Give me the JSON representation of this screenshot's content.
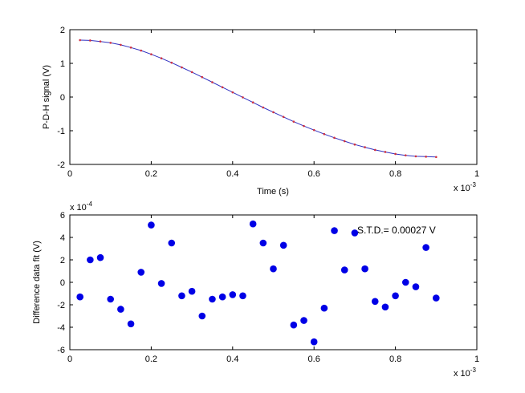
{
  "chart_data": [
    {
      "type": "line",
      "title": "",
      "xlabel": "Time (s)",
      "ylabel": "P-D-H signal (V)",
      "xlim": [
        0,
        1
      ],
      "ylim": [
        -2,
        2
      ],
      "x_multiplier": "x 10",
      "x_multiplier_exp": "-3",
      "xticks": [
        "0",
        "0.2",
        "0.4",
        "0.6",
        "0.8",
        "1"
      ],
      "yticks": [
        "-2",
        "-1",
        "0",
        "1",
        "2"
      ],
      "grid": false,
      "series": [
        {
          "color": "#3030c0",
          "marker_color": "#d03040",
          "x": [
            0.025,
            0.05,
            0.075,
            0.1,
            0.125,
            0.15,
            0.175,
            0.2,
            0.225,
            0.25,
            0.275,
            0.3,
            0.325,
            0.35,
            0.375,
            0.4,
            0.425,
            0.45,
            0.475,
            0.5,
            0.525,
            0.55,
            0.575,
            0.6,
            0.625,
            0.65,
            0.675,
            0.7,
            0.725,
            0.75,
            0.775,
            0.8,
            0.825,
            0.85,
            0.875,
            0.9
          ],
          "y": [
            1.69,
            1.68,
            1.65,
            1.61,
            1.55,
            1.47,
            1.38,
            1.27,
            1.15,
            1.02,
            0.88,
            0.74,
            0.59,
            0.44,
            0.29,
            0.14,
            -0.01,
            -0.16,
            -0.31,
            -0.45,
            -0.59,
            -0.73,
            -0.86,
            -0.98,
            -1.1,
            -1.21,
            -1.31,
            -1.41,
            -1.49,
            -1.57,
            -1.63,
            -1.69,
            -1.73,
            -1.76,
            -1.77,
            -1.78
          ]
        }
      ]
    },
    {
      "type": "scatter",
      "title": "",
      "xlabel": "",
      "ylabel": "Difference data fit (V)",
      "xlim": [
        0,
        1
      ],
      "ylim": [
        -6,
        6
      ],
      "x_multiplier": "x 10",
      "x_multiplier_exp": "-3",
      "y_multiplier": "x 10",
      "y_multiplier_exp": "-4",
      "xticks": [
        "0",
        "0.2",
        "0.4",
        "0.6",
        "0.8",
        "1"
      ],
      "yticks": [
        "-6",
        "-4",
        "-2",
        "0",
        "2",
        "4",
        "6"
      ],
      "grid": false,
      "annotation": "S.T.D.= 0.00027 V",
      "series": [
        {
          "color": "#0000e6",
          "x": [
            0.025,
            0.05,
            0.075,
            0.1,
            0.125,
            0.15,
            0.175,
            0.2,
            0.225,
            0.25,
            0.275,
            0.3,
            0.325,
            0.35,
            0.375,
            0.4,
            0.425,
            0.45,
            0.475,
            0.5,
            0.525,
            0.55,
            0.575,
            0.6,
            0.625,
            0.65,
            0.675,
            0.7,
            0.725,
            0.75,
            0.775,
            0.8,
            0.825,
            0.85,
            0.875,
            0.9
          ],
          "y": [
            -1.3,
            2.0,
            2.2,
            -1.5,
            -2.4,
            -3.7,
            0.9,
            5.1,
            -0.1,
            3.5,
            -1.2,
            -0.8,
            -3.0,
            -1.5,
            -1.3,
            -1.1,
            -1.2,
            5.2,
            3.5,
            1.2,
            3.3,
            -3.8,
            -3.4,
            -5.3,
            -2.3,
            4.6,
            1.1,
            4.4,
            1.2,
            -1.7,
            -2.2,
            -1.2,
            0.0,
            -0.4,
            3.1,
            -1.4
          ]
        }
      ]
    }
  ]
}
